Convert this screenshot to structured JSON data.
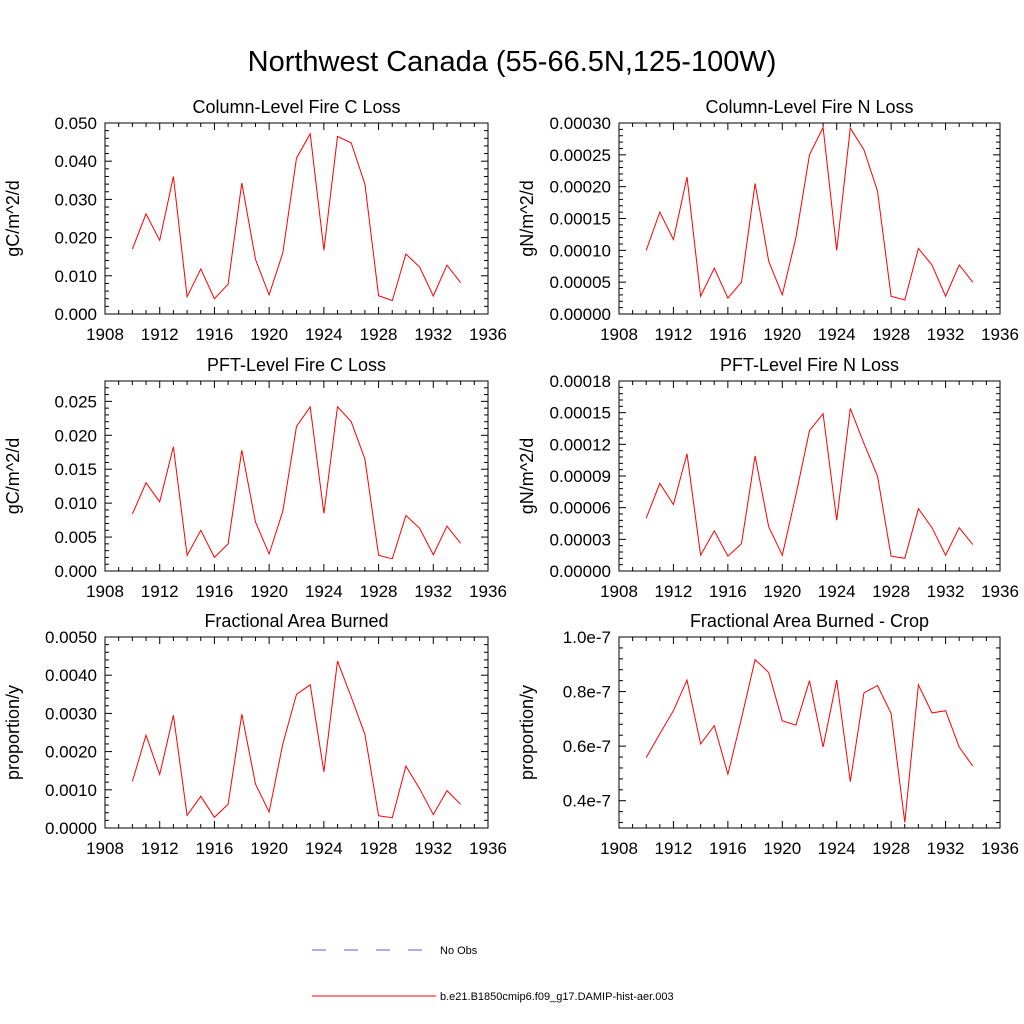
{
  "page": {
    "title": "Northwest Canada (55-66.5N,125-100W)"
  },
  "legend": {
    "entries": [
      {
        "label": "No Obs",
        "color": "#5b5bd6",
        "dash": true
      },
      {
        "label": "b.e21.B1850cmip6.f09_g17.DAMIP-hist-aer.003",
        "color": "#ff0000",
        "dash": false
      }
    ]
  },
  "chart_data": [
    {
      "type": "line",
      "title": "Column-Level Fire C Loss",
      "ylabel": "gC/m^2/d",
      "xlim": [
        1908,
        1936
      ],
      "ylim": [
        0,
        0.05
      ],
      "x_ticks": [
        "1908",
        "1912",
        "1916",
        "1920",
        "1924",
        "1928",
        "1932",
        "1936"
      ],
      "y_ticks": [
        "0.000",
        "0.010",
        "0.020",
        "0.030",
        "0.040",
        "0.050"
      ],
      "x": [
        1910,
        1911,
        1912,
        1913,
        1914,
        1915,
        1916,
        1917,
        1918,
        1919,
        1920,
        1921,
        1922,
        1923,
        1924,
        1925,
        1926,
        1927,
        1928,
        1929,
        1930,
        1931,
        1932,
        1933,
        1934
      ],
      "series": [
        {
          "color": "#ff0000",
          "values": [
            0.017,
            0.0262,
            0.0193,
            0.036,
            0.0045,
            0.0118,
            0.004,
            0.0078,
            0.0343,
            0.0143,
            0.005,
            0.016,
            0.0408,
            0.0472,
            0.0167,
            0.0465,
            0.0448,
            0.034,
            0.0048,
            0.0035,
            0.0157,
            0.0123,
            0.0047,
            0.0128,
            0.0082
          ]
        }
      ]
    },
    {
      "type": "line",
      "title": "Column-Level Fire N Loss",
      "ylabel": "gN/m^2/d",
      "xlim": [
        1908,
        1936
      ],
      "ylim": [
        0,
        0.0003
      ],
      "x_ticks": [
        "1908",
        "1912",
        "1916",
        "1920",
        "1924",
        "1928",
        "1932",
        "1936"
      ],
      "y_ticks": [
        "0.00000",
        "0.00005",
        "0.00010",
        "0.00015",
        "0.00020",
        "0.00025",
        "0.00030"
      ],
      "x": [
        1910,
        1911,
        1912,
        1913,
        1914,
        1915,
        1916,
        1917,
        1918,
        1919,
        1920,
        1921,
        1922,
        1923,
        1924,
        1925,
        1926,
        1927,
        1928,
        1929,
        1930,
        1931,
        1932,
        1933,
        1934
      ],
      "series": [
        {
          "color": "#ff0000",
          "values": [
            0.0001,
            0.00016,
            0.000117,
            0.000215,
            2.8e-05,
            7.2e-05,
            2.5e-05,
            5e-05,
            0.000205,
            8.3e-05,
            3e-05,
            0.00012,
            0.00025,
            0.000293,
            0.0001,
            0.000292,
            0.000258,
            0.000193,
            2.8e-05,
            2.2e-05,
            0.000103,
            7.7e-05,
            2.8e-05,
            7.7e-05,
            5e-05
          ]
        }
      ]
    },
    {
      "type": "line",
      "title": "PFT-Level Fire C Loss",
      "ylabel": "gC/m^2/d",
      "xlim": [
        1908,
        1936
      ],
      "ylim": [
        0,
        0.028
      ],
      "x_ticks": [
        "1908",
        "1912",
        "1916",
        "1920",
        "1924",
        "1928",
        "1932",
        "1936"
      ],
      "y_ticks": [
        "0.000",
        "0.005",
        "0.010",
        "0.015",
        "0.020",
        "0.025"
      ],
      "x": [
        1910,
        1911,
        1912,
        1913,
        1914,
        1915,
        1916,
        1917,
        1918,
        1919,
        1920,
        1921,
        1922,
        1923,
        1924,
        1925,
        1926,
        1927,
        1928,
        1929,
        1930,
        1931,
        1932,
        1933,
        1934
      ],
      "series": [
        {
          "color": "#ff0000",
          "values": [
            0.0084,
            0.013,
            0.0102,
            0.0183,
            0.0023,
            0.006,
            0.002,
            0.004,
            0.0178,
            0.0072,
            0.0025,
            0.0088,
            0.0213,
            0.0242,
            0.0085,
            0.0242,
            0.022,
            0.0165,
            0.0023,
            0.0018,
            0.0082,
            0.0063,
            0.0024,
            0.0066,
            0.0041
          ]
        }
      ]
    },
    {
      "type": "line",
      "title": "PFT-Level Fire N Loss",
      "ylabel": "gN/m^2/d",
      "xlim": [
        1908,
        1936
      ],
      "ylim": [
        0,
        0.00018
      ],
      "x_ticks": [
        "1908",
        "1912",
        "1916",
        "1920",
        "1924",
        "1928",
        "1932",
        "1936"
      ],
      "y_ticks": [
        "0.00000",
        "0.00003",
        "0.00006",
        "0.00009",
        "0.00012",
        "0.00015",
        "0.00018"
      ],
      "x": [
        1910,
        1911,
        1912,
        1913,
        1914,
        1915,
        1916,
        1917,
        1918,
        1919,
        1920,
        1921,
        1922,
        1923,
        1924,
        1925,
        1926,
        1927,
        1928,
        1929,
        1930,
        1931,
        1932,
        1933,
        1934
      ],
      "series": [
        {
          "color": "#ff0000",
          "values": [
            5e-05,
            8.3e-05,
            6.3e-05,
            0.000111,
            1.5e-05,
            3.8e-05,
            1.4e-05,
            2.6e-05,
            0.000109,
            4.2e-05,
            1.5e-05,
            7.2e-05,
            0.000133,
            0.000149,
            4.8e-05,
            0.000154,
            0.000121,
            9e-05,
            1.4e-05,
            1.2e-05,
            5.9e-05,
            4.1e-05,
            1.5e-05,
            4.1e-05,
            2.5e-05
          ]
        }
      ]
    },
    {
      "type": "line",
      "title": "Fractional Area Burned",
      "ylabel": "proportion/y",
      "xlim": [
        1908,
        1936
      ],
      "ylim": [
        0,
        0.005
      ],
      "x_ticks": [
        "1908",
        "1912",
        "1916",
        "1920",
        "1924",
        "1928",
        "1932",
        "1936"
      ],
      "y_ticks": [
        "0.0000",
        "0.0010",
        "0.0020",
        "0.0030",
        "0.0040",
        "0.0050"
      ],
      "x": [
        1910,
        1911,
        1912,
        1913,
        1914,
        1915,
        1916,
        1917,
        1918,
        1919,
        1920,
        1921,
        1922,
        1923,
        1924,
        1925,
        1926,
        1927,
        1928,
        1929,
        1930,
        1931,
        1932,
        1933,
        1934
      ],
      "series": [
        {
          "color": "#ff0000",
          "values": [
            0.00122,
            0.00243,
            0.0014,
            0.00295,
            0.00033,
            0.00083,
            0.00028,
            0.00062,
            0.00298,
            0.00115,
            0.00042,
            0.0022,
            0.0035,
            0.00375,
            0.00147,
            0.00437,
            0.00343,
            0.00245,
            0.00032,
            0.00027,
            0.00162,
            0.00103,
            0.00035,
            0.00098,
            0.00062
          ]
        }
      ]
    },
    {
      "type": "line",
      "title": "Fractional Area Burned - Crop",
      "ylabel": "proportion/y",
      "xlim": [
        1908,
        1936
      ],
      "ylim": [
        3e-08,
        1e-07
      ],
      "x_ticks": [
        "1908",
        "1912",
        "1916",
        "1920",
        "1924",
        "1928",
        "1932",
        "1936"
      ],
      "y_ticks": [
        "0.4e-7",
        "0.6e-7",
        "0.8e-7",
        "1.0e-7"
      ],
      "y_tick_values": [
        4e-08,
        6e-08,
        8e-08,
        1e-07
      ],
      "x": [
        1910,
        1911,
        1912,
        1913,
        1914,
        1915,
        1916,
        1917,
        1918,
        1919,
        1920,
        1921,
        1922,
        1923,
        1924,
        1925,
        1926,
        1927,
        1928,
        1929,
        1930,
        1931,
        1932,
        1933,
        1934
      ],
      "series": [
        {
          "color": "#ff0000",
          "values": [
            5.58e-08,
            6.45e-08,
            7.3e-08,
            8.42e-08,
            6.08e-08,
            6.75e-08,
            4.97e-08,
            7.02e-08,
            9.17e-08,
            8.7e-08,
            6.93e-08,
            6.77e-08,
            8.4e-08,
            5.97e-08,
            8.42e-08,
            4.7e-08,
            7.95e-08,
            8.22e-08,
            7.2e-08,
            3.2e-08,
            8.25e-08,
            7.22e-08,
            7.3e-08,
            5.97e-08,
            5.27e-08
          ]
        }
      ]
    }
  ]
}
